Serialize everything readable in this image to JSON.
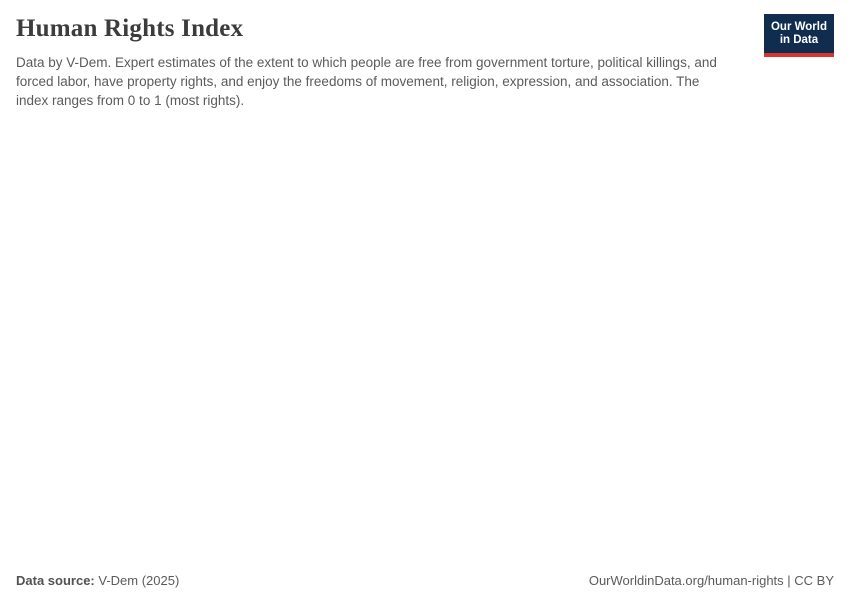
{
  "header": {
    "title": "Human Rights Index",
    "subtitle": "Data by V-Dem. Expert estimates of the extent to which people are free from government torture, political killings, and forced labor, have property rights, and enjoy the freedoms of movement, religion, expression, and association. The index ranges from 0 to 1 (most rights).",
    "logo": {
      "line1": "Our World",
      "line2": "in Data",
      "bg_color": "#102d50",
      "accent_color": "#d8352e",
      "text_color": "#ffffff"
    }
  },
  "chart_data": {
    "type": "line",
    "title": "Human Rights Index",
    "subtitle": "Data by V-Dem. Expert estimates of the extent to which people are free from government torture, political killings, and forced labor, have property rights, and enjoy the freedoms of movement, religion, expression, and association. The index ranges from 0 to 1 (most rights).",
    "series": [],
    "categories": [],
    "note": "Plot area is blank in the screenshot; no axes, gridlines or data points are rendered."
  },
  "footer": {
    "source_label": "Data source:",
    "source_value": "V-Dem (2025)",
    "license": "OurWorldinData.org/human-rights | CC BY"
  },
  "colors": {
    "title_text": "#3d3b3b",
    "body_text": "#5b5b5b",
    "background": "#ffffff"
  }
}
